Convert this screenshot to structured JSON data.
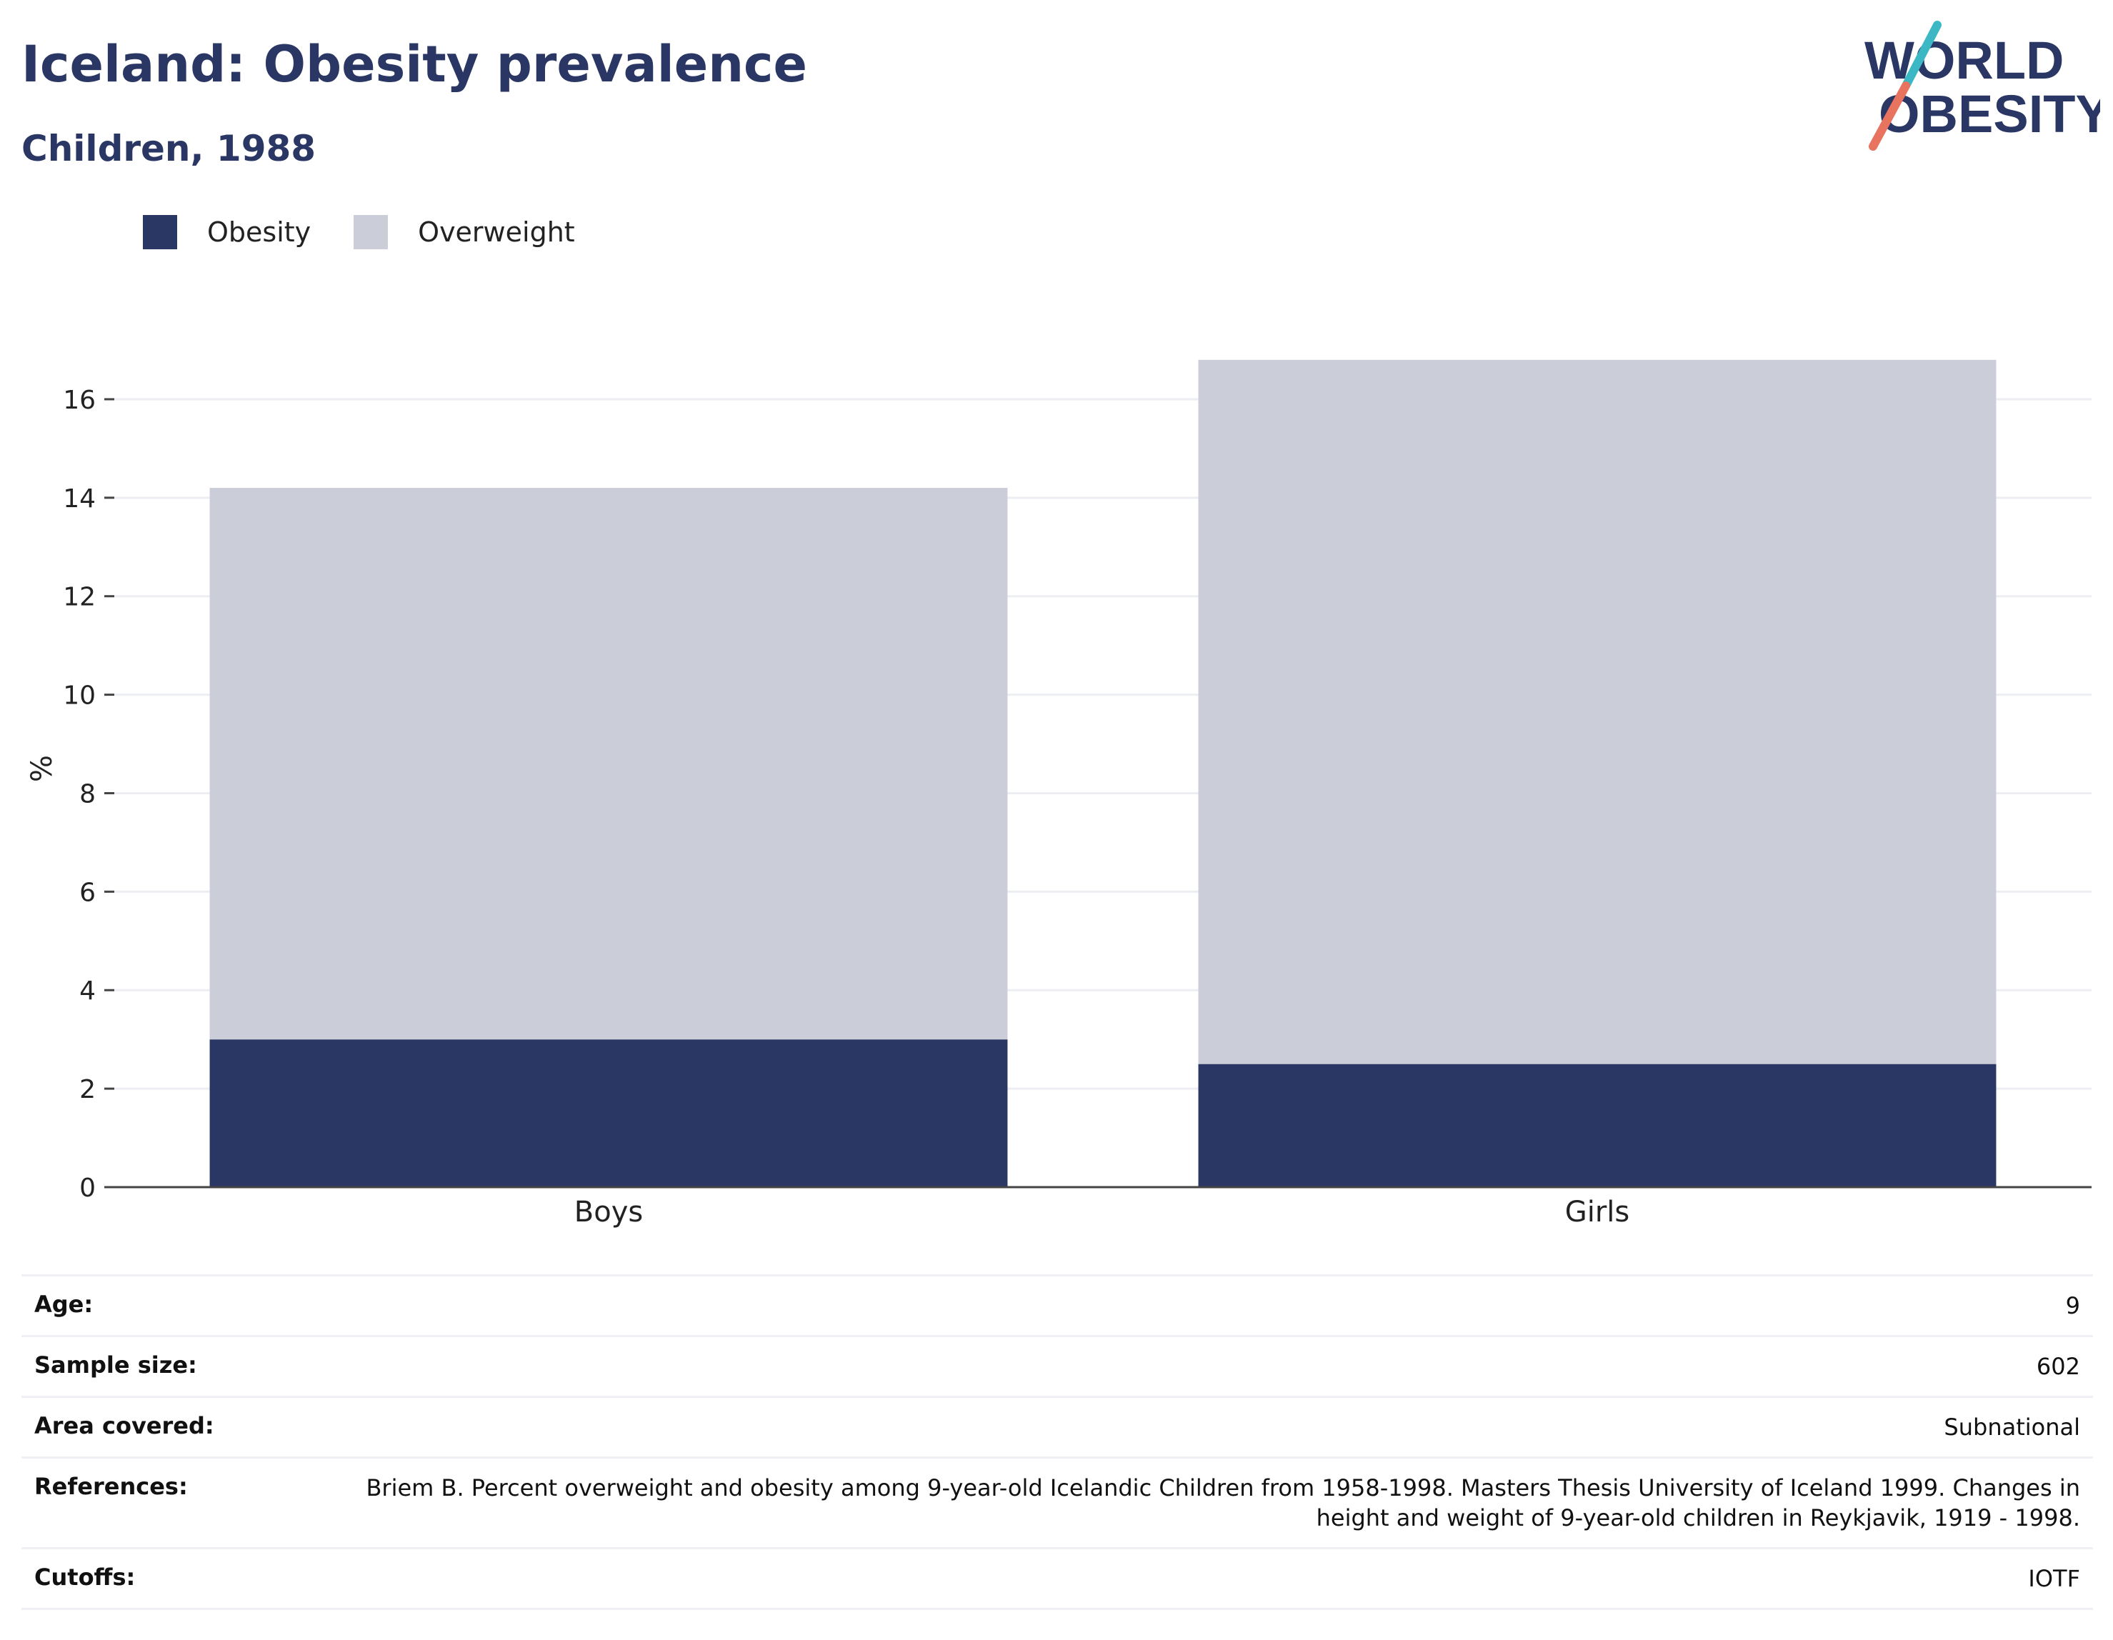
{
  "header": {
    "title": "Iceland: Obesity prevalence",
    "subtitle": "Children, 1988"
  },
  "logo": {
    "line1": "WORLD",
    "line2": "OBESITY",
    "colors": {
      "text": "#2a3663",
      "slash_top": "#3bb8c3",
      "slash_bottom": "#e8735f"
    }
  },
  "legend": [
    {
      "label": "Obesity",
      "color": "#2a3663"
    },
    {
      "label": "Overweight",
      "color": "#cbcdd8"
    }
  ],
  "chart_data": {
    "type": "bar",
    "stacked": true,
    "categories": [
      "Boys",
      "Girls"
    ],
    "series": [
      {
        "name": "Obesity",
        "values": [
          3.0,
          2.5
        ],
        "color": "#2a3663"
      },
      {
        "name": "Overweight",
        "values": [
          11.2,
          14.3
        ],
        "color": "#cbcdd8"
      }
    ],
    "xlabel": "",
    "ylabel": "%",
    "ylim": [
      0,
      17
    ],
    "yticks": [
      0,
      2,
      4,
      6,
      8,
      10,
      12,
      14,
      16
    ],
    "grid": true,
    "legend_position": "top-left"
  },
  "info": [
    {
      "key": "Age:",
      "value": "9"
    },
    {
      "key": "Sample size:",
      "value": "602"
    },
    {
      "key": "Area covered:",
      "value": "Subnational"
    },
    {
      "key": "References:",
      "value": "Briem B. Percent overweight and obesity among 9-year-old Icelandic Children from 1958-1998. Masters Thesis University of Iceland 1999. Changes in height and weight of 9-year-old children in Reykjavik, 1919 - 1998."
    },
    {
      "key": "Cutoffs:",
      "value": "IOTF"
    }
  ]
}
